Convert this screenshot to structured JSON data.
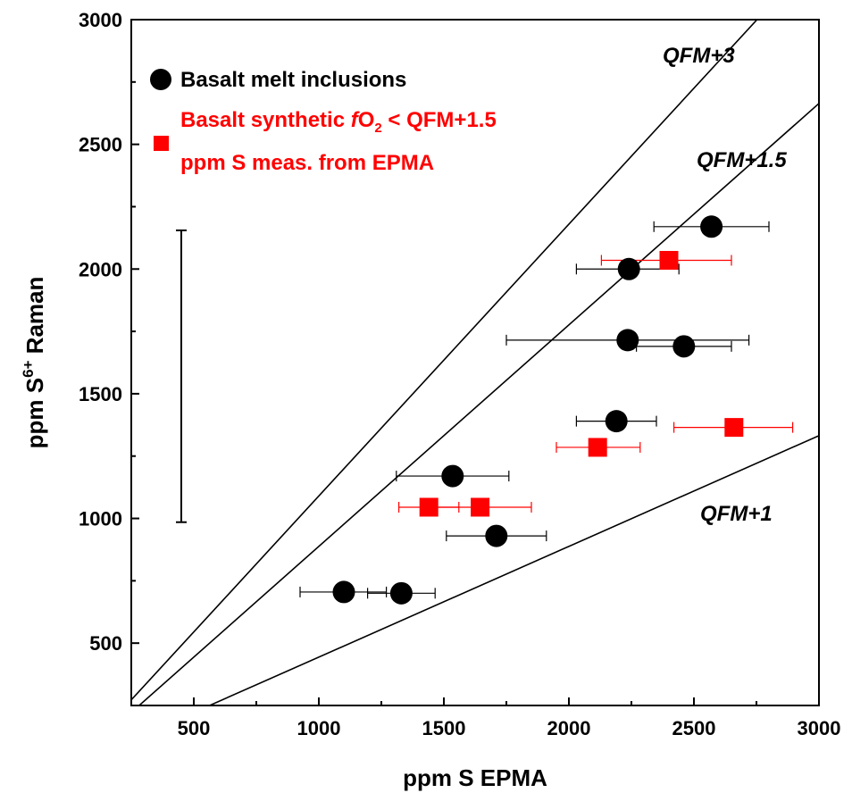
{
  "chart_data": {
    "type": "scatter",
    "xlabel": "ppm S EPMA",
    "ylabel_parts": {
      "prefix": "ppm S",
      "sup": "6+",
      "suffix": " Raman"
    },
    "xlim": [
      250,
      3000
    ],
    "ylim": [
      250,
      3000
    ],
    "x_ticks": [
      500,
      1000,
      1500,
      2000,
      2500,
      3000
    ],
    "y_ticks": [
      500,
      1000,
      1500,
      2000,
      2500,
      3000
    ],
    "grid": false,
    "legend": {
      "placement": "top-left",
      "entries": [
        {
          "label": "Basalt melt inclusions",
          "color": "#000000",
          "marker": "circle"
        },
        {
          "label_parts": {
            "pre": "Basalt synthetic ",
            "italic": "f",
            "mid": "O",
            "sub": "2",
            "post": " < QFM+1.5"
          },
          "label_line2": "ppm S meas. from EPMA",
          "color": "#ff0000",
          "marker": "square"
        }
      ]
    },
    "reference_lines": [
      {
        "name": "QFM+3",
        "slope": 1.09
      },
      {
        "name": "QFM+1.5",
        "slope": 0.888
      },
      {
        "name": "QFM+1",
        "slope": 0.444
      }
    ],
    "series": [
      {
        "name": "Basalt melt inclusions",
        "marker": "circle",
        "color": "#000000",
        "errbar_color": "#000000",
        "points": [
          {
            "x": 2570,
            "y": 2170,
            "xerr": [
              2340,
              2800
            ]
          },
          {
            "x": 2240,
            "y": 2000,
            "xerr": [
              2030,
              2440
            ]
          },
          {
            "x": 2235,
            "y": 1715,
            "xerr": [
              1750,
              2720
            ]
          },
          {
            "x": 2460,
            "y": 1690,
            "xerr": [
              2270,
              2650
            ]
          },
          {
            "x": 2190,
            "y": 1390,
            "xerr": [
              2030,
              2350
            ]
          },
          {
            "x": 1535,
            "y": 1170,
            "xerr": [
              1310,
              1760
            ]
          },
          {
            "x": 1710,
            "y": 930,
            "xerr": [
              1510,
              1910
            ]
          },
          {
            "x": 1100,
            "y": 705,
            "xerr": [
              925,
              1270
            ]
          },
          {
            "x": 1330,
            "y": 700,
            "xerr": [
              1195,
              1465
            ]
          }
        ]
      },
      {
        "name": "Basalt synthetic fO2 < QFM+1.5",
        "marker": "square",
        "color": "#ff0000",
        "errbar_color": "#ff0000",
        "points": [
          {
            "x": 2400,
            "y": 2035,
            "xerr": [
              2130,
              2650
            ]
          },
          {
            "x": 2660,
            "y": 1365,
            "xerr": [
              2420,
              2895
            ]
          },
          {
            "x": 2115,
            "y": 1285,
            "xerr": [
              1950,
              2285
            ]
          },
          {
            "x": 1440,
            "y": 1045,
            "xerr": [
              1320,
              1560
            ]
          },
          {
            "x": 1645,
            "y": 1045,
            "xerr": [
              1440,
              1850
            ]
          }
        ]
      }
    ],
    "error_bar_legend": {
      "y_low": 985,
      "y_high": 2155,
      "x": 450
    }
  }
}
